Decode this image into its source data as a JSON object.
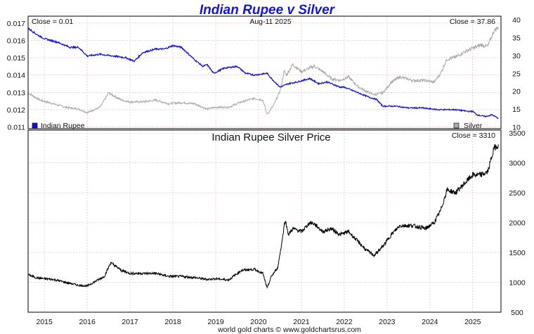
{
  "title": "Indian Rupee v Silver",
  "footer": "world gold charts © www.goldchartsrus.com",
  "colors": {
    "title": "#1515d8",
    "rupee": "#1111dd",
    "silver": "#aaaaaa",
    "price": "#000000",
    "grid": "#e6b8b8"
  },
  "chart_data": [
    {
      "type": "line",
      "title": "Indian Rupee v Silver",
      "date_label": "Aug-11  2025",
      "close_left": "Close = 0.01",
      "close_right": "Close = 37.86",
      "x_ticks": [
        "2015",
        "2016",
        "2017",
        "2018",
        "2019",
        "2020",
        "2021",
        "2022",
        "2023",
        "2024",
        "2025"
      ],
      "x_range": [
        2014.62,
        2025.66
      ],
      "y_left_ticks": [
        "0.017",
        "0.016",
        "0.015",
        "0.014",
        "0.013",
        "0.012",
        "0.011"
      ],
      "y_left_range": [
        0.0109,
        0.0174
      ],
      "y_right_ticks": [
        "40",
        "35",
        "30",
        "25",
        "20",
        "15",
        "10"
      ],
      "y_right_range": [
        9.5,
        41
      ],
      "series": [
        {
          "name": "Indian Rupee",
          "axis": "left",
          "x": [
            2014.62,
            2014.85,
            2015.0,
            2015.3,
            2015.6,
            2015.8,
            2016.0,
            2016.3,
            2016.6,
            2016.9,
            2017.1,
            2017.3,
            2017.6,
            2017.8,
            2018.0,
            2018.2,
            2018.5,
            2018.7,
            2018.8,
            2018.95,
            2019.2,
            2019.5,
            2019.7,
            2019.9,
            2020.2,
            2020.3,
            2020.5,
            2020.7,
            2020.9,
            2021.2,
            2021.4,
            2021.6,
            2021.9,
            2022.0,
            2022.2,
            2022.4,
            2022.6,
            2022.75,
            2022.9,
            2023.2,
            2023.5,
            2023.8,
            2024.2,
            2024.6,
            2024.9,
            2025.0,
            2025.1,
            2025.3,
            2025.45,
            2025.6
          ],
          "values": [
            0.0167,
            0.0163,
            0.0161,
            0.0159,
            0.0156,
            0.0156,
            0.0151,
            0.0152,
            0.0151,
            0.015,
            0.0148,
            0.0153,
            0.0155,
            0.0155,
            0.0157,
            0.0156,
            0.0149,
            0.0145,
            0.0146,
            0.0141,
            0.0144,
            0.0145,
            0.0141,
            0.014,
            0.0141,
            0.0138,
            0.0133,
            0.0135,
            0.0136,
            0.0138,
            0.0135,
            0.0136,
            0.0133,
            0.0133,
            0.0131,
            0.0129,
            0.0127,
            0.0126,
            0.0122,
            0.0122,
            0.0121,
            0.0121,
            0.012,
            0.012,
            0.0119,
            0.0119,
            0.0117,
            0.0116,
            0.0117,
            0.0115
          ]
        },
        {
          "name": "Silver",
          "axis": "right",
          "x": [
            2014.62,
            2014.9,
            2015.2,
            2015.5,
            2015.8,
            2016.0,
            2016.3,
            2016.5,
            2016.8,
            2017.0,
            2017.3,
            2017.6,
            2017.9,
            2018.2,
            2018.5,
            2018.8,
            2019.0,
            2019.3,
            2019.6,
            2019.9,
            2020.1,
            2020.2,
            2020.35,
            2020.5,
            2020.6,
            2020.65,
            2020.8,
            2021.0,
            2021.1,
            2021.3,
            2021.5,
            2021.7,
            2021.9,
            2022.1,
            2022.3,
            2022.5,
            2022.7,
            2022.9,
            2023.1,
            2023.3,
            2023.6,
            2023.9,
            2024.1,
            2024.25,
            2024.4,
            2024.6,
            2024.8,
            2025.0,
            2025.2,
            2025.35,
            2025.5,
            2025.6
          ],
          "values": [
            19.5,
            17.5,
            16.5,
            15.5,
            15.0,
            14.0,
            15.5,
            19.5,
            17.5,
            17.0,
            17.0,
            17.5,
            16.5,
            16.8,
            16.5,
            15.0,
            15.5,
            15.5,
            17.0,
            18.0,
            17.5,
            13.5,
            16.0,
            20.0,
            25.5,
            24.5,
            27.5,
            25.5,
            26.0,
            27.0,
            25.5,
            23.5,
            23.0,
            24.0,
            21.5,
            20.0,
            19.0,
            19.5,
            22.5,
            24.0,
            23.0,
            23.0,
            22.5,
            25.0,
            29.0,
            29.5,
            31.0,
            32.0,
            33.0,
            32.5,
            37.0,
            37.86
          ]
        }
      ],
      "legend": [
        "Indian Rupee",
        "Silver"
      ]
    },
    {
      "type": "line",
      "title": "Indian Rupee Silver Price",
      "close_label": "Close = 3310",
      "x_ticks": [
        "2015",
        "2016",
        "2017",
        "2018",
        "2019",
        "2020",
        "2021",
        "2022",
        "2023",
        "2024",
        "2025"
      ],
      "x_range": [
        2014.62,
        2025.66
      ],
      "y_ticks": [
        "3500",
        "3000",
        "2500",
        "2000",
        "1500",
        "1000",
        "500"
      ],
      "y_range": [
        500,
        3550
      ],
      "series": [
        {
          "name": "Indian Rupee Silver Price",
          "x": [
            2014.62,
            2014.8,
            2015.0,
            2015.2,
            2015.5,
            2015.8,
            2016.0,
            2016.2,
            2016.4,
            2016.55,
            2016.8,
            2017.0,
            2017.3,
            2017.6,
            2017.9,
            2018.2,
            2018.5,
            2018.8,
            2019.0,
            2019.3,
            2019.6,
            2019.9,
            2020.1,
            2020.2,
            2020.3,
            2020.45,
            2020.55,
            2020.62,
            2020.7,
            2020.8,
            2021.0,
            2021.2,
            2021.3,
            2021.5,
            2021.7,
            2021.9,
            2022.1,
            2022.3,
            2022.5,
            2022.7,
            2022.9,
            2023.1,
            2023.3,
            2023.6,
            2023.9,
            2024.1,
            2024.25,
            2024.4,
            2024.6,
            2024.8,
            2025.0,
            2025.2,
            2025.35,
            2025.5,
            2025.6
          ],
          "values": [
            1130,
            1080,
            1060,
            1050,
            1000,
            950,
            940,
            1020,
            1100,
            1330,
            1200,
            1150,
            1150,
            1150,
            1100,
            1100,
            1080,
            1050,
            1060,
            1040,
            1200,
            1220,
            1150,
            900,
            1100,
            1250,
            1700,
            2050,
            1800,
            1900,
            1850,
            2000,
            1980,
            1850,
            1900,
            1800,
            1850,
            1700,
            1550,
            1450,
            1600,
            1800,
            1950,
            1950,
            1900,
            2000,
            2200,
            2550,
            2500,
            2650,
            2800,
            2800,
            2850,
            3250,
            3310
          ]
        }
      ]
    }
  ]
}
